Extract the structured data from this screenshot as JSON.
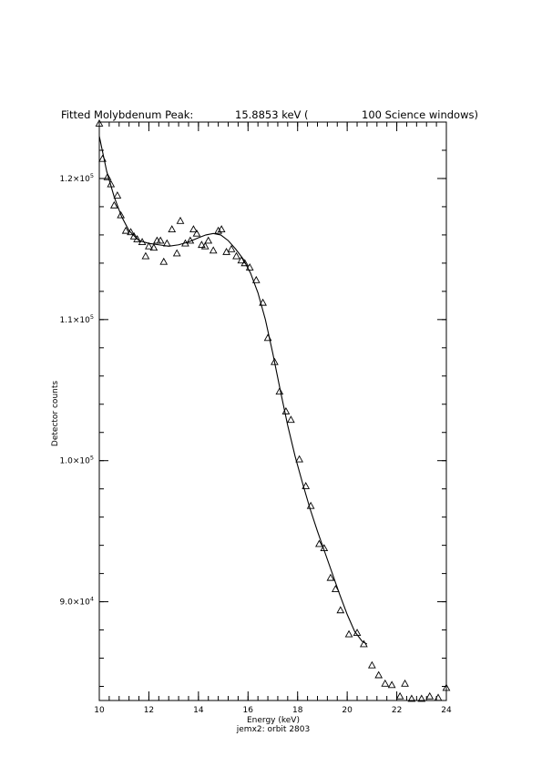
{
  "chart_data": {
    "type": "scatter",
    "title": {
      "prefix": "Fitted Molybdenum Peak:",
      "value": "15.8853 keV (",
      "suffix": "100 Science windows)"
    },
    "xlabel": "Energy (keV)",
    "ylabel": "Detector counts",
    "caption": "jemx2: orbit 2803",
    "xlim": [
      10,
      24
    ],
    "ylim": [
      83000,
      124000
    ],
    "x_ticks": [
      {
        "value": 10,
        "label": "10"
      },
      {
        "value": 12,
        "label": "12"
      },
      {
        "value": 14,
        "label": "14"
      },
      {
        "value": 16,
        "label": "16"
      },
      {
        "value": 18,
        "label": "18"
      },
      {
        "value": 20,
        "label": "20"
      },
      {
        "value": 22,
        "label": "22"
      },
      {
        "value": 24,
        "label": "24"
      }
    ],
    "x_minor_step": 0.4,
    "y_ticks": [
      {
        "value": 90000,
        "mantissa": "9.0×10",
        "exp": "4"
      },
      {
        "value": 100000,
        "mantissa": "1.0×10",
        "exp": "5"
      },
      {
        "value": 110000,
        "mantissa": "1.1×10",
        "exp": "5"
      },
      {
        "value": 120000,
        "mantissa": "1.2×10",
        "exp": "5"
      }
    ],
    "y_minor_step": 2000,
    "grid": false,
    "series": [
      {
        "marker": "triangle",
        "points": [
          [
            10.0,
            123900
          ],
          [
            10.13,
            121400
          ],
          [
            10.33,
            120100
          ],
          [
            10.47,
            119600
          ],
          [
            10.6,
            118100
          ],
          [
            10.73,
            118800
          ],
          [
            10.87,
            117400
          ],
          [
            11.07,
            116300
          ],
          [
            11.27,
            116200
          ],
          [
            11.4,
            115900
          ],
          [
            11.53,
            115700
          ],
          [
            11.73,
            115500
          ],
          [
            11.87,
            114500
          ],
          [
            12.0,
            115200
          ],
          [
            12.2,
            115100
          ],
          [
            12.33,
            115600
          ],
          [
            12.47,
            115600
          ],
          [
            12.6,
            114100
          ],
          [
            12.73,
            115400
          ],
          [
            12.93,
            116400
          ],
          [
            13.13,
            114700
          ],
          [
            13.27,
            117000
          ],
          [
            13.47,
            115400
          ],
          [
            13.67,
            115600
          ],
          [
            13.8,
            116400
          ],
          [
            13.93,
            116100
          ],
          [
            14.13,
            115300
          ],
          [
            14.27,
            115200
          ],
          [
            14.4,
            115600
          ],
          [
            14.6,
            114900
          ],
          [
            14.8,
            116300
          ],
          [
            14.93,
            116400
          ],
          [
            15.13,
            114800
          ],
          [
            15.33,
            115000
          ],
          [
            15.53,
            114500
          ],
          [
            15.73,
            114200
          ],
          [
            15.87,
            114000
          ],
          [
            16.07,
            113700
          ],
          [
            16.33,
            112800
          ],
          [
            16.6,
            111200
          ],
          [
            16.8,
            108700
          ],
          [
            17.07,
            107000
          ],
          [
            17.27,
            104900
          ],
          [
            17.53,
            103500
          ],
          [
            17.73,
            102900
          ],
          [
            18.07,
            100100
          ],
          [
            18.33,
            98200
          ],
          [
            18.53,
            96800
          ],
          [
            18.87,
            94100
          ],
          [
            19.07,
            93800
          ],
          [
            19.33,
            91700
          ],
          [
            19.53,
            90900
          ],
          [
            19.73,
            89400
          ],
          [
            20.07,
            87700
          ],
          [
            20.4,
            87800
          ],
          [
            20.67,
            87000
          ],
          [
            21.0,
            85500
          ],
          [
            21.27,
            84800
          ],
          [
            21.53,
            84200
          ],
          [
            21.8,
            84100
          ],
          [
            22.13,
            83300
          ],
          [
            22.33,
            84200
          ],
          [
            22.6,
            82800
          ],
          [
            23.0,
            82700
          ],
          [
            23.33,
            83300
          ],
          [
            23.67,
            83200
          ],
          [
            24.0,
            83900
          ]
        ]
      }
    ],
    "fit_curve": [
      [
        10.0,
        123000
      ],
      [
        10.3,
        120500
      ],
      [
        10.6,
        118700
      ],
      [
        10.9,
        117300
      ],
      [
        11.2,
        116300
      ],
      [
        11.6,
        115600
      ],
      [
        12.0,
        115400
      ],
      [
        12.4,
        115300
      ],
      [
        12.8,
        115200
      ],
      [
        13.2,
        115300
      ],
      [
        13.6,
        115500
      ],
      [
        14.0,
        115800
      ],
      [
        14.3,
        116000
      ],
      [
        14.6,
        116100
      ],
      [
        14.9,
        116000
      ],
      [
        15.2,
        115600
      ],
      [
        15.5,
        115000
      ],
      [
        15.8,
        114300
      ],
      [
        16.1,
        113300
      ],
      [
        16.4,
        111900
      ],
      [
        16.7,
        110000
      ],
      [
        17.0,
        107600
      ],
      [
        17.3,
        105000
      ],
      [
        17.6,
        102500
      ],
      [
        17.9,
        100300
      ],
      [
        18.2,
        98400
      ],
      [
        18.5,
        96600
      ],
      [
        18.8,
        95000
      ],
      [
        19.1,
        93500
      ],
      [
        19.4,
        92000
      ],
      [
        19.7,
        90500
      ],
      [
        20.0,
        89100
      ],
      [
        20.3,
        87900
      ],
      [
        20.6,
        87200
      ],
      [
        20.8,
        87000
      ]
    ]
  }
}
